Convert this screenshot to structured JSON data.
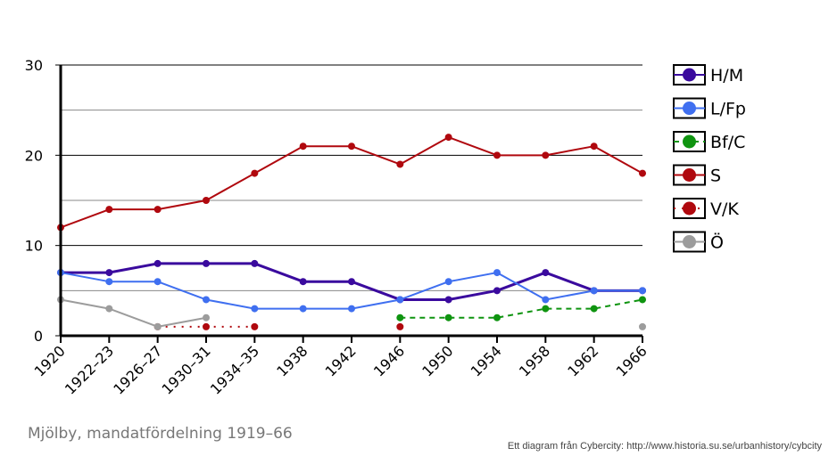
{
  "caption": "Mjölby, mandatfördelning 1919–66",
  "credit": "Ett diagram från Cybercity: http://www.historia.su.se/urbanhistory/cybcity",
  "chart_data": {
    "type": "line",
    "categories": [
      "1920",
      "1922–23",
      "1926–27",
      "1930–31",
      "1934–35",
      "1938",
      "1942",
      "1946",
      "1950",
      "1954",
      "1958",
      "1962",
      "1966"
    ],
    "ylim": [
      0,
      30
    ],
    "yticks": [
      "0",
      "10",
      "20",
      "30"
    ],
    "grid": true,
    "legend_position": "right",
    "series": [
      {
        "name": "H/M",
        "color": "#3a0a9e",
        "dash": "solid",
        "width": 3,
        "values": [
          7,
          7,
          8,
          8,
          8,
          6,
          6,
          4,
          4,
          5,
          7,
          5,
          5
        ]
      },
      {
        "name": "L/Fp",
        "color": "#3f6ff0",
        "dash": "solid",
        "width": 2,
        "values": [
          7,
          6,
          6,
          4,
          3,
          3,
          3,
          4,
          6,
          7,
          4,
          5,
          5
        ]
      },
      {
        "name": "Bf/C",
        "color": "#0f9410",
        "dash": "dashed",
        "width": 2,
        "values": [
          null,
          null,
          null,
          null,
          null,
          null,
          null,
          2,
          2,
          2,
          3,
          3,
          4
        ]
      },
      {
        "name": "S",
        "color": "#b0080e",
        "dash": "solid",
        "width": 2,
        "values": [
          12,
          14,
          14,
          15,
          18,
          21,
          21,
          19,
          22,
          20,
          20,
          21,
          18
        ]
      },
      {
        "name": "V/K",
        "color": "#b0080e",
        "dash": "dotted",
        "width": 2,
        "values": [
          null,
          null,
          1,
          1,
          1,
          null,
          null,
          1,
          null,
          null,
          null,
          null,
          null
        ]
      },
      {
        "name": "Ö",
        "color": "#9c9c9c",
        "dash": "solid",
        "width": 2,
        "values": [
          4,
          3,
          1,
          2,
          null,
          null,
          null,
          null,
          null,
          null,
          null,
          null,
          1
        ]
      }
    ]
  }
}
